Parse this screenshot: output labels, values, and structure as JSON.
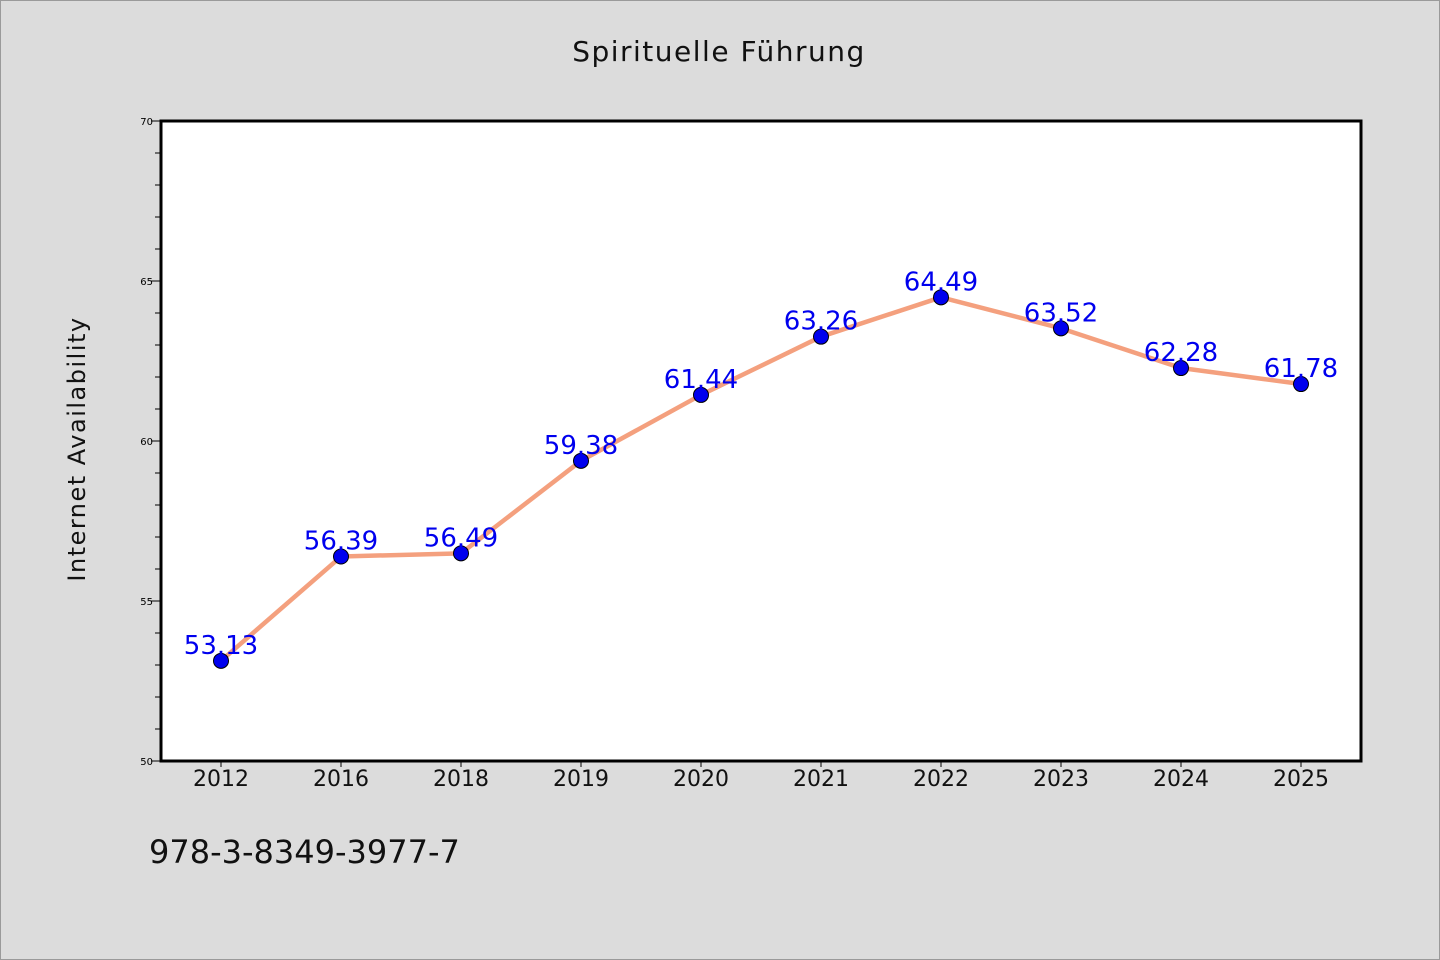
{
  "chart_data": {
    "type": "line",
    "title": "Spirituelle Führung",
    "xlabel": "",
    "ylabel": "Internet Availability",
    "categories": [
      "2012",
      "2016",
      "2018",
      "2019",
      "2020",
      "2021",
      "2022",
      "2023",
      "2024",
      "2025"
    ],
    "series": [
      {
        "values": [
          53.13,
          56.39,
          56.49,
          59.38,
          61.44,
          63.26,
          64.49,
          63.52,
          62.28,
          61.78
        ],
        "labels": [
          "53.13",
          "56.39",
          "56.49",
          "59.38",
          "61.44",
          "63.26",
          "64.49",
          "63.52",
          "62.28",
          "61.78"
        ],
        "line_color": "#f4a07e",
        "marker_color": "#0000ee",
        "label_color": "#0000ee"
      }
    ],
    "ylim": [
      50,
      70
    ],
    "yticks": [
      50,
      55,
      60,
      65,
      70
    ],
    "grid": false,
    "legend": "none",
    "background": "#dcdcdc",
    "plot_background": "#ffffff"
  },
  "footer": {
    "isbn": "978-3-8349-3977-7"
  }
}
